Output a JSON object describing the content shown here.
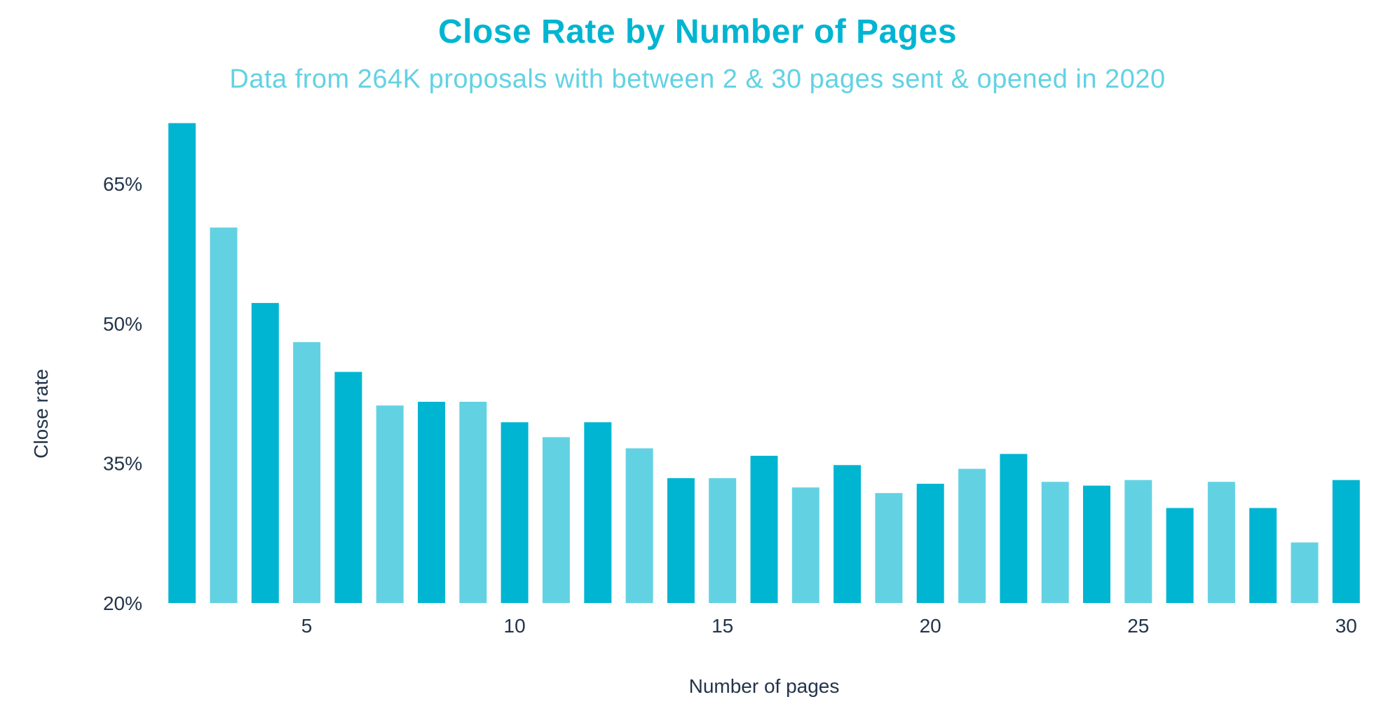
{
  "chart_data": {
    "type": "bar",
    "title": "Close Rate by Number of Pages",
    "subtitle": "Data from 264K proposals with between 2 & 30 pages sent & opened in 2020",
    "xlabel": "Number of pages",
    "ylabel": "Close rate",
    "categories": [
      2,
      3,
      4,
      5,
      6,
      7,
      8,
      9,
      10,
      11,
      12,
      13,
      14,
      15,
      16,
      17,
      18,
      19,
      20,
      21,
      22,
      23,
      24,
      25,
      26,
      27,
      28,
      29,
      30
    ],
    "values": [
      71.5,
      60.3,
      52.2,
      48.0,
      44.8,
      41.2,
      41.6,
      41.6,
      39.4,
      37.8,
      39.4,
      36.6,
      33.4,
      33.4,
      35.8,
      32.4,
      34.8,
      31.8,
      32.8,
      34.4,
      36.0,
      33.0,
      32.6,
      33.2,
      30.2,
      33.0,
      30.2,
      26.5,
      33.2
    ],
    "ylim": [
      20,
      72
    ],
    "yticks": [
      20,
      35,
      50,
      65
    ],
    "ytick_labels": [
      "20%",
      "35%",
      "50%",
      "65%"
    ],
    "xticks": [
      5,
      10,
      15,
      20,
      25,
      30
    ],
    "xtick_labels": [
      "5",
      "10",
      "15",
      "20",
      "25",
      "30"
    ],
    "grid": false,
    "colors": {
      "dark": "#00b5d1",
      "light": "#62d2e3"
    }
  }
}
